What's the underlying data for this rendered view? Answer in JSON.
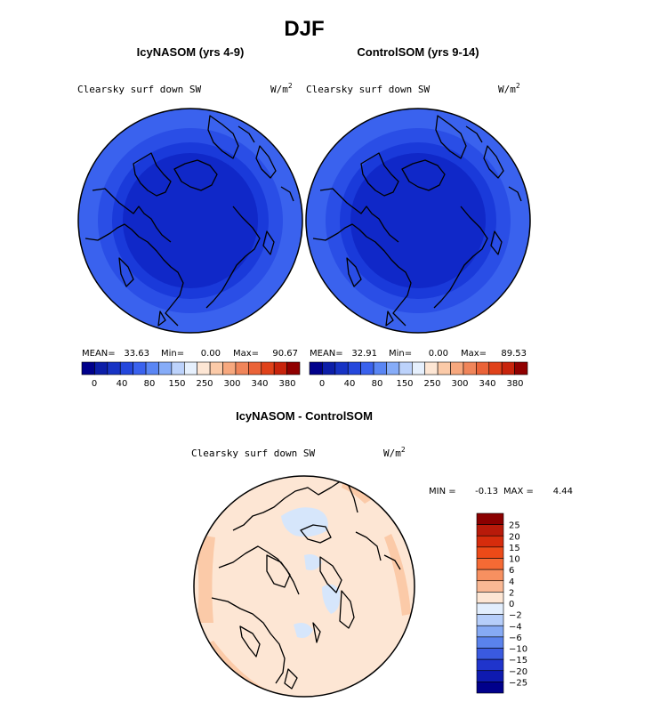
{
  "figure": {
    "title": "DJF"
  },
  "chart_data": [
    {
      "type": "heatmap",
      "title": "IcyNASOM (yrs 4-9)",
      "variable": "Clearsky surf down SW",
      "units": "W/m",
      "units_exp": "2",
      "stats": {
        "mean_label": "MEAN=",
        "mean": "33.63",
        "min_label": "Min=",
        "min": "0.00",
        "max_label": "Max=",
        "max": "90.67"
      },
      "rings": [
        {
          "level": 40,
          "color": "#3a62ee"
        },
        {
          "level": 30,
          "color": "#2a4ee6"
        },
        {
          "level": 20,
          "color": "#1a3ada"
        },
        {
          "level": 10,
          "color": "#1028c8"
        }
      ],
      "colorbar": {
        "colors": [
          "#00008b",
          "#0c1ea8",
          "#1733c4",
          "#2447dc",
          "#3a62ee",
          "#5a86f4",
          "#86acf8",
          "#bcd2fb",
          "#e6f0fd",
          "#fde6d4",
          "#fbcaa8",
          "#f7a87e",
          "#f0855a",
          "#ea6338",
          "#e0421a",
          "#c8240c",
          "#900000"
        ],
        "ticks": [
          "0",
          "40",
          "80",
          "150",
          "250",
          "300",
          "340",
          "380"
        ]
      }
    },
    {
      "type": "heatmap",
      "title": "ControlSOM (yrs 9-14)",
      "variable": "Clearsky surf down SW",
      "units": "W/m",
      "units_exp": "2",
      "stats": {
        "mean_label": "MEAN=",
        "mean": "32.91",
        "min_label": "Min=",
        "min": "0.00",
        "max_label": "Max=",
        "max": "89.53"
      },
      "rings": [
        {
          "level": 40,
          "color": "#3a62ee"
        },
        {
          "level": 30,
          "color": "#2a4ee6"
        },
        {
          "level": 20,
          "color": "#1a3ada"
        },
        {
          "level": 10,
          "color": "#1028c8"
        }
      ],
      "colorbar": {
        "colors": [
          "#00008b",
          "#0c1ea8",
          "#1733c4",
          "#2447dc",
          "#3a62ee",
          "#5a86f4",
          "#86acf8",
          "#bcd2fb",
          "#e6f0fd",
          "#fde6d4",
          "#fbcaa8",
          "#f7a87e",
          "#f0855a",
          "#ea6338",
          "#e0421a",
          "#c8240c",
          "#900000"
        ],
        "ticks": [
          "0",
          "40",
          "80",
          "150",
          "250",
          "300",
          "340",
          "380"
        ]
      }
    },
    {
      "type": "heatmap",
      "title": "IcyNASOM - ControlSOM",
      "variable": "Clearsky surf down SW",
      "units": "W/m",
      "units_exp": "2",
      "stats": {
        "min_label": "MIN =",
        "min": "-0.13",
        "max_label": "MAX =",
        "max": "4.44"
      },
      "background_color": "#fde6d4",
      "colorbar": {
        "levels": [
          "25",
          "20",
          "15",
          "10",
          "6",
          "4",
          "2",
          "0",
          "−2",
          "−4",
          "−6",
          "−10",
          "−15",
          "−20",
          "−25"
        ],
        "colors": [
          "#8b0000",
          "#b81a0a",
          "#d62c0c",
          "#ec4a18",
          "#f56a34",
          "#f79060",
          "#fab894",
          "#fde6d4",
          "#e2eefd",
          "#b6cefa",
          "#86aaf4",
          "#5a82ec",
          "#3a5ae0",
          "#1f34cc",
          "#0e1ab0",
          "#00008b"
        ]
      }
    }
  ]
}
